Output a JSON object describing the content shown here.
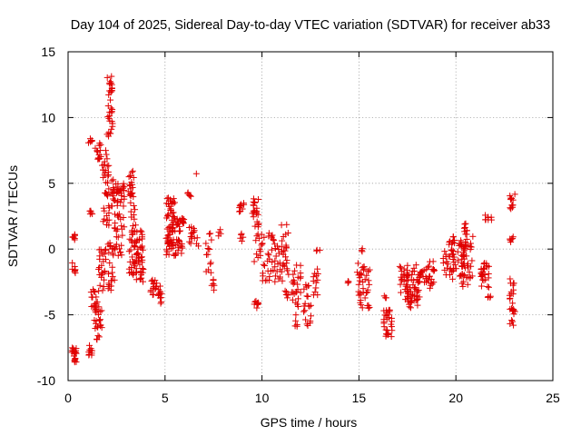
{
  "chart_data": {
    "type": "scatter",
    "title": "Day 104 of 2025, Sidereal Day-to-day VTEC variation (SDTVAR) for receiver ab33",
    "xlabel": "GPS time / hours",
    "ylabel": "SDTVAR / TECUs",
    "xlim": [
      0,
      25
    ],
    "ylim": [
      -10,
      15
    ],
    "xticks": [
      0,
      5,
      10,
      15,
      20,
      25
    ],
    "yticks": [
      -10,
      -5,
      0,
      5,
      10,
      15
    ],
    "xtick_labels": [
      "0",
      "5",
      "10",
      "15",
      "20",
      "25"
    ],
    "ytick_labels": [
      "-10",
      "-5",
      "0",
      "5",
      "10",
      "15"
    ],
    "grid": true,
    "marker": "+",
    "color": "#e00000",
    "clusters": [
      {
        "x": [
          0.2,
          0.45
        ],
        "y": [
          -8.6,
          -7.5
        ],
        "n": 20
      },
      {
        "x": [
          0.2,
          0.4
        ],
        "y": [
          0.7,
          1.3
        ],
        "n": 8
      },
      {
        "x": [
          0.2,
          0.45
        ],
        "y": [
          -2.0,
          -1.0
        ],
        "n": 8
      },
      {
        "x": [
          1.05,
          1.25
        ],
        "y": [
          -8.1,
          -7.2
        ],
        "n": 10
      },
      {
        "x": [
          1.05,
          1.25
        ],
        "y": [
          8.0,
          8.4
        ],
        "n": 6
      },
      {
        "x": [
          1.05,
          1.25
        ],
        "y": [
          2.4,
          3.0
        ],
        "n": 5
      },
      {
        "x": [
          1.1,
          1.45
        ],
        "y": [
          -4.5,
          -3.0
        ],
        "n": 10
      },
      {
        "x": [
          1.35,
          1.75
        ],
        "y": [
          -7.0,
          -4.0
        ],
        "n": 28
      },
      {
        "x": [
          1.4,
          1.7
        ],
        "y": [
          6.8,
          8.2
        ],
        "n": 14
      },
      {
        "x": [
          1.55,
          1.95
        ],
        "y": [
          -3.5,
          0.0
        ],
        "n": 26
      },
      {
        "x": [
          1.75,
          2.1
        ],
        "y": [
          5.0,
          7.5
        ],
        "n": 18
      },
      {
        "x": [
          2.0,
          2.3
        ],
        "y": [
          8.0,
          13.2
        ],
        "n": 35
      },
      {
        "x": [
          1.8,
          2.35
        ],
        "y": [
          1.5,
          5.5
        ],
        "n": 30
      },
      {
        "x": [
          2.05,
          2.45
        ],
        "y": [
          -3.2,
          0.5
        ],
        "n": 25
      },
      {
        "x": [
          2.35,
          2.9
        ],
        "y": [
          1.5,
          5.0
        ],
        "n": 45
      },
      {
        "x": [
          2.4,
          2.85
        ],
        "y": [
          -0.5,
          1.5
        ],
        "n": 12
      },
      {
        "x": [
          3.1,
          3.4
        ],
        "y": [
          3.5,
          6.0
        ],
        "n": 20
      },
      {
        "x": [
          3.15,
          3.5
        ],
        "y": [
          1.0,
          3.5
        ],
        "n": 12
      },
      {
        "x": [
          3.15,
          3.9
        ],
        "y": [
          -2.0,
          1.5
        ],
        "n": 60
      },
      {
        "x": [
          3.5,
          3.9
        ],
        "y": [
          -2.6,
          -1.5
        ],
        "n": 10
      },
      {
        "x": [
          4.25,
          4.6
        ],
        "y": [
          -3.5,
          -2.0
        ],
        "n": 15
      },
      {
        "x": [
          4.55,
          4.85
        ],
        "y": [
          -4.6,
          -2.8
        ],
        "n": 12
      },
      {
        "x": [
          5.05,
          5.5
        ],
        "y": [
          -0.5,
          4.0
        ],
        "n": 55
      },
      {
        "x": [
          5.3,
          5.9
        ],
        "y": [
          -0.5,
          2.5
        ],
        "n": 45
      },
      {
        "x": [
          5.7,
          6.0
        ],
        "y": [
          1.8,
          2.6
        ],
        "n": 8
      },
      {
        "x": [
          6.1,
          6.35
        ],
        "y": [
          3.9,
          4.3
        ],
        "n": 5
      },
      {
        "x": [
          6.2,
          6.8
        ],
        "y": [
          0.2,
          2.0
        ],
        "n": 16
      },
      {
        "x": [
          6.55,
          6.7
        ],
        "y": [
          5.6,
          5.8
        ],
        "n": 1
      },
      {
        "x": [
          7.1,
          7.4
        ],
        "y": [
          -2.0,
          1.5
        ],
        "n": 14
      },
      {
        "x": [
          7.35,
          7.55
        ],
        "y": [
          -3.2,
          -2.3
        ],
        "n": 6
      },
      {
        "x": [
          7.7,
          7.9
        ],
        "y": [
          1.0,
          1.6
        ],
        "n": 4
      },
      {
        "x": [
          8.8,
          9.1
        ],
        "y": [
          2.8,
          3.6
        ],
        "n": 10
      },
      {
        "x": [
          8.85,
          9.05
        ],
        "y": [
          0.5,
          1.3
        ],
        "n": 5
      },
      {
        "x": [
          9.5,
          9.9
        ],
        "y": [
          2.0,
          4.3
        ],
        "n": 18
      },
      {
        "x": [
          9.6,
          10.0
        ],
        "y": [
          -1.0,
          2.0
        ],
        "n": 16
      },
      {
        "x": [
          9.6,
          9.85
        ],
        "y": [
          -4.7,
          -3.8
        ],
        "n": 8
      },
      {
        "x": [
          10.0,
          10.6
        ],
        "y": [
          -2.5,
          1.0
        ],
        "n": 22
      },
      {
        "x": [
          10.3,
          10.6
        ],
        "y": [
          0.7,
          1.3
        ],
        "n": 6
      },
      {
        "x": [
          10.6,
          11.1
        ],
        "y": [
          -2.5,
          0.5
        ],
        "n": 20
      },
      {
        "x": [
          11.0,
          11.4
        ],
        "y": [
          -2.0,
          2.0
        ],
        "n": 22
      },
      {
        "x": [
          11.15,
          11.45
        ],
        "y": [
          -4.0,
          -3.0
        ],
        "n": 6
      },
      {
        "x": [
          11.5,
          12.0
        ],
        "y": [
          -4.5,
          -1.0
        ],
        "n": 25
      },
      {
        "x": [
          11.7,
          11.9
        ],
        "y": [
          -5.9,
          -4.6
        ],
        "n": 5
      },
      {
        "x": [
          12.1,
          12.55
        ],
        "y": [
          -6.1,
          -2.5
        ],
        "n": 20
      },
      {
        "x": [
          12.6,
          12.95
        ],
        "y": [
          -3.5,
          -1.5
        ],
        "n": 12
      },
      {
        "x": [
          12.75,
          13.0
        ],
        "y": [
          -0.4,
          0.0
        ],
        "n": 3
      },
      {
        "x": [
          14.35,
          14.55
        ],
        "y": [
          -2.8,
          -2.0
        ],
        "n": 3
      },
      {
        "x": [
          14.9,
          15.6
        ],
        "y": [
          -4.6,
          -1.0
        ],
        "n": 40
      },
      {
        "x": [
          15.0,
          15.2
        ],
        "y": [
          -0.4,
          0.1
        ],
        "n": 3
      },
      {
        "x": [
          16.25,
          16.75
        ],
        "y": [
          -6.8,
          -4.6
        ],
        "n": 30
      },
      {
        "x": [
          16.25,
          16.45
        ],
        "y": [
          -4.0,
          -3.5
        ],
        "n": 3
      },
      {
        "x": [
          17.1,
          17.6
        ],
        "y": [
          -4.0,
          -1.0
        ],
        "n": 30
      },
      {
        "x": [
          17.5,
          18.2
        ],
        "y": [
          -4.5,
          -1.2
        ],
        "n": 45
      },
      {
        "x": [
          18.1,
          18.5
        ],
        "y": [
          -2.8,
          -1.2
        ],
        "n": 15
      },
      {
        "x": [
          18.5,
          18.9
        ],
        "y": [
          -3.0,
          -0.8
        ],
        "n": 18
      },
      {
        "x": [
          19.3,
          19.9
        ],
        "y": [
          -2.0,
          0.0
        ],
        "n": 22
      },
      {
        "x": [
          19.6,
          19.8
        ],
        "y": [
          0.2,
          0.8
        ],
        "n": 4
      },
      {
        "x": [
          19.8,
          20.5
        ],
        "y": [
          -2.5,
          1.0
        ],
        "n": 40
      },
      {
        "x": [
          20.3,
          20.9
        ],
        "y": [
          -3.0,
          2.0
        ],
        "n": 45
      },
      {
        "x": [
          21.3,
          21.7
        ],
        "y": [
          -3.0,
          -1.0
        ],
        "n": 25
      },
      {
        "x": [
          21.5,
          21.85
        ],
        "y": [
          2.2,
          2.6
        ],
        "n": 8
      },
      {
        "x": [
          21.5,
          21.8
        ],
        "y": [
          -3.9,
          -3.3
        ],
        "n": 4
      },
      {
        "x": [
          22.75,
          23.05
        ],
        "y": [
          -6.0,
          -2.2
        ],
        "n": 25
      },
      {
        "x": [
          22.75,
          23.05
        ],
        "y": [
          3.0,
          4.2
        ],
        "n": 12
      },
      {
        "x": [
          22.75,
          23.0
        ],
        "y": [
          0.5,
          1.0
        ],
        "n": 6
      }
    ]
  }
}
